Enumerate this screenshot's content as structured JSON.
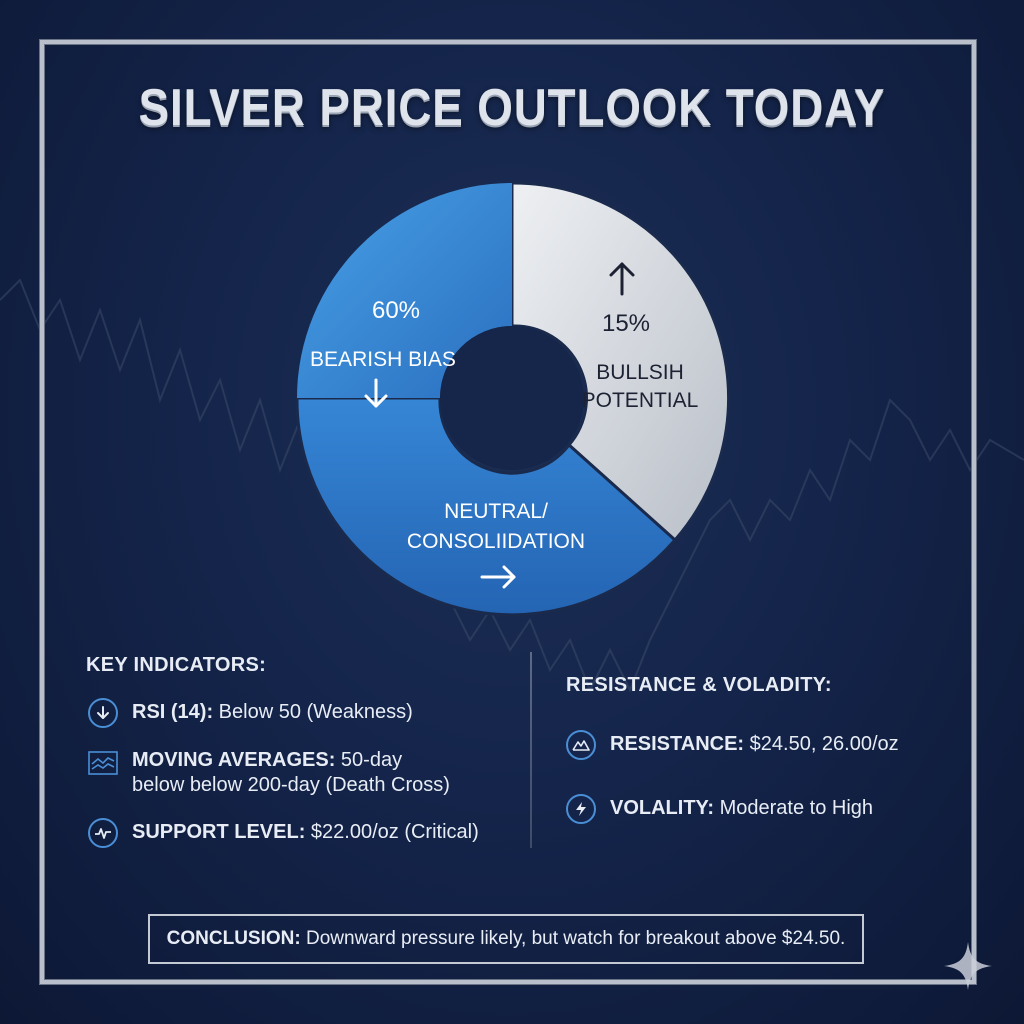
{
  "title": "SILVER PRICE OUTLOOK TODAY",
  "chart_data": {
    "type": "pie",
    "style": "donut",
    "slices": [
      {
        "pct_label": "60%",
        "label": "BEARISH BIAS",
        "arrow": "down-arrow-icon",
        "color": "#3f8fdc"
      },
      {
        "pct_label": "15%",
        "label_lines": [
          "BULLSIH",
          "POTENTIAL"
        ],
        "arrow": "up-arrow-icon",
        "color": "#d9dde3"
      },
      {
        "pct_label": "",
        "label_lines": [
          "NEUTRAL/",
          "CONSOLIIDATION"
        ],
        "arrow": "right-arrow-icon",
        "color": "#2f78c8"
      }
    ]
  },
  "key_indicators": {
    "heading": "KEY INDICATORS:",
    "items": [
      {
        "icon": "down-arrow-circle-icon",
        "name": "RSI (14):",
        "value": " Below 50 (Weakness)"
      },
      {
        "icon": "chart-lines-icon",
        "name": "MOVING AVERAGES:",
        "value": " 50-day",
        "value2": "below below 200-day (Death Cross)"
      },
      {
        "icon": "pulse-circle-icon",
        "name": "SUPPORT LEVEL:",
        "value": " $22.00/oz (Critical)"
      }
    ]
  },
  "resistance": {
    "heading": "RESISTANCE & VOLADITY:",
    "items": [
      {
        "icon": "mountain-circle-icon",
        "name": "RESISTANCE:",
        "value": " $24.50, 26.00/oz"
      },
      {
        "icon": "lightning-circle-icon",
        "name": "VOLALITY:",
        "value": " Moderate to High"
      }
    ]
  },
  "conclusion": {
    "label": "CONCLUSION:",
    "text": " Downward pressure likely, but watch for breakout above $24.50."
  },
  "colors": {
    "accent": "#4a8fd6",
    "background": "#14244a",
    "frame": "#b9c0cc"
  }
}
